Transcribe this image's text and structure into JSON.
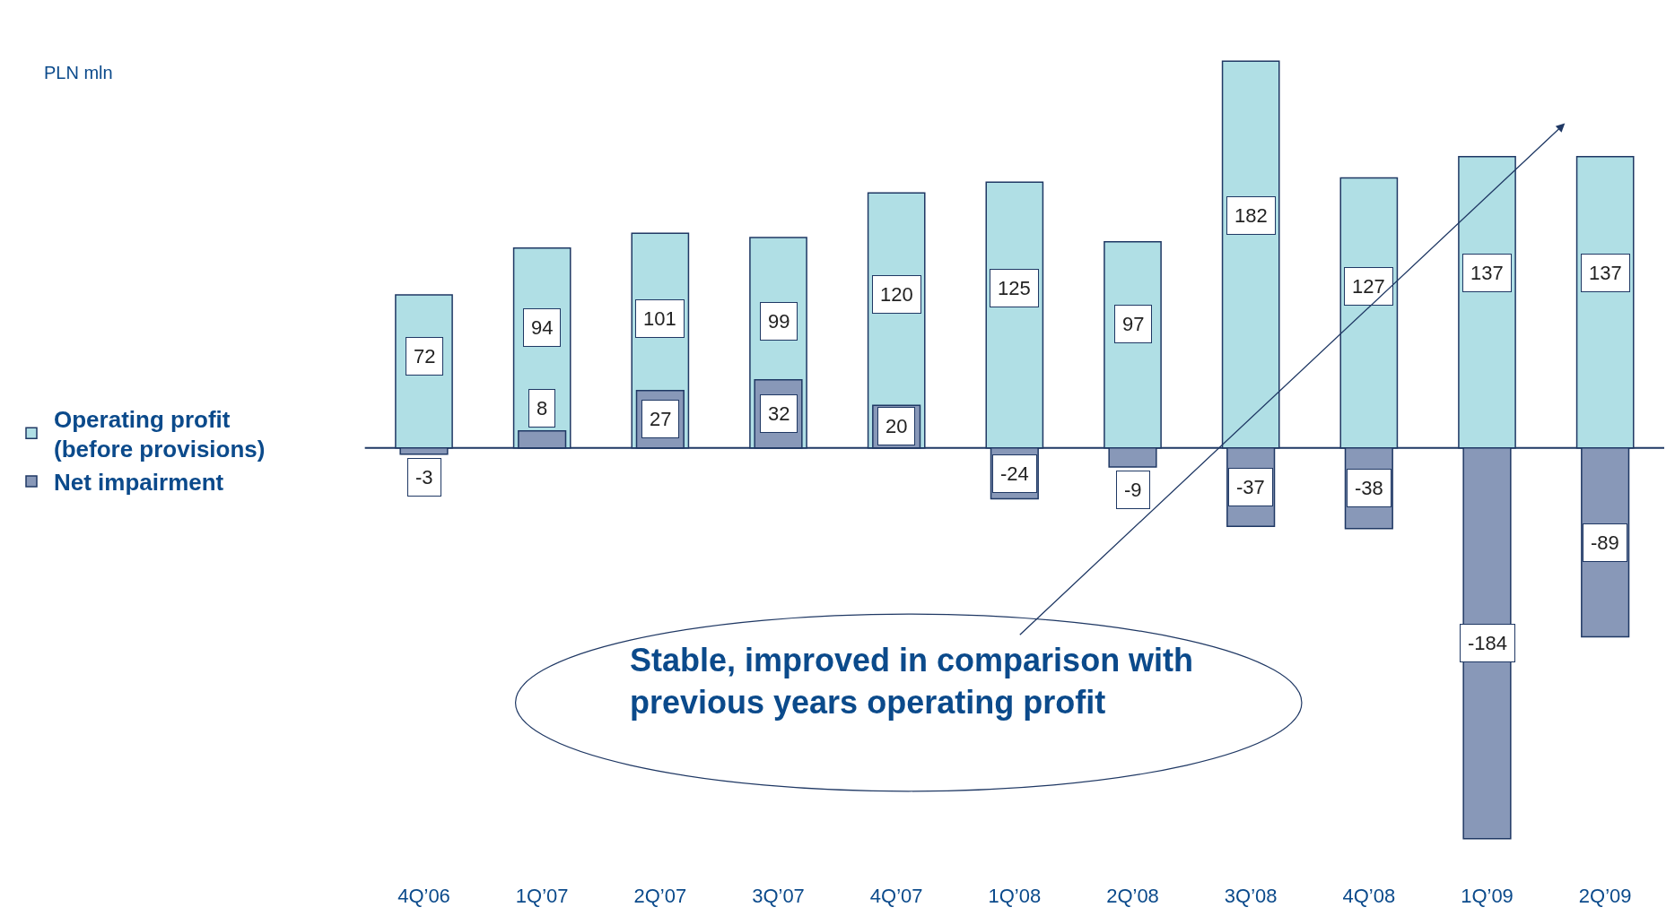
{
  "chart_data": {
    "type": "bar",
    "categories": [
      "4Q’06",
      "1Q’07",
      "2Q’07",
      "3Q’07",
      "4Q’07",
      "1Q’08",
      "2Q’08",
      "3Q’08",
      "4Q’08",
      "1Q’09",
      "2Q’09"
    ],
    "series": [
      {
        "name": "Operating profit\n(before provisions)",
        "color": "#b0dfe5",
        "values": [
          72,
          94,
          101,
          99,
          120,
          125,
          97,
          182,
          127,
          137,
          137
        ]
      },
      {
        "name": "Net impairment",
        "color": "#8898b8",
        "values": [
          -3,
          8,
          27,
          32,
          20,
          -24,
          -9,
          -37,
          -38,
          -184,
          -89
        ]
      }
    ],
    "ref_lines": [
      {
        "axis": "y",
        "value": 0,
        "color": "#1f3864"
      }
    ],
    "data_labels": true,
    "legend": "left",
    "tick_labels": "x",
    "annotations": [
      "PLN mln",
      "Stable, improved in comparison with\nprevious years operating profit"
    ]
  }
}
